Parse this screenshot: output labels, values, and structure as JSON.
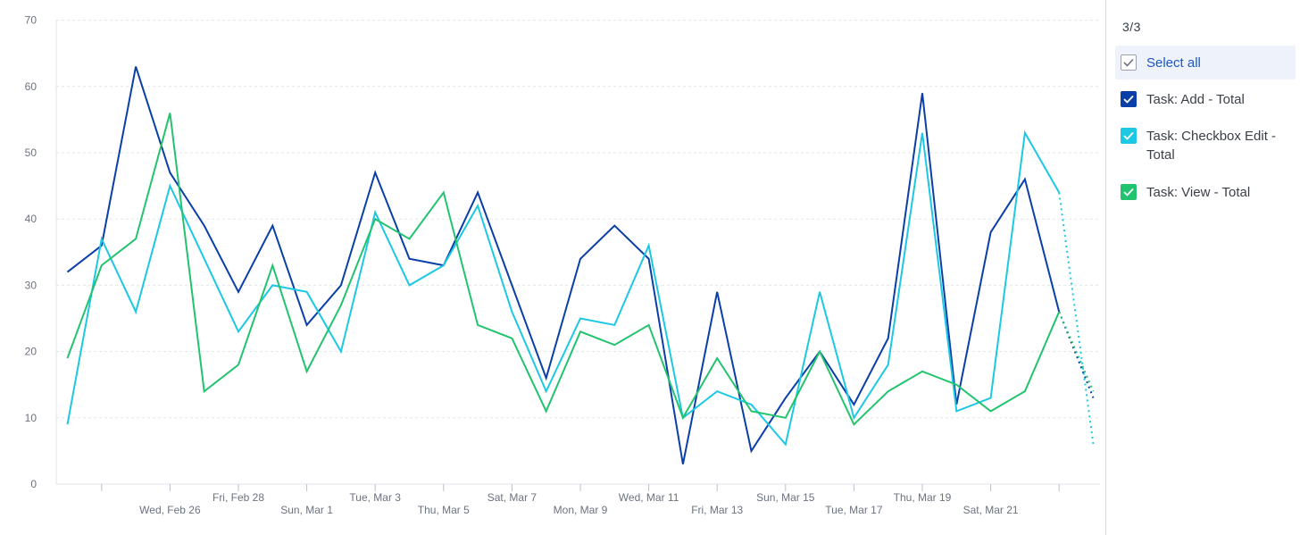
{
  "legend_panel": {
    "count": "3/3",
    "select_all": "Select all",
    "items": [
      {
        "label": "Task: Add - Total",
        "color": "#0b3fa8"
      },
      {
        "label": "Task: Checkbox Edit - Total",
        "color": "#1cc8e3"
      },
      {
        "label": "Task: View - Total",
        "color": "#22c36e"
      }
    ]
  },
  "chart_data": {
    "type": "line",
    "ylim": [
      0,
      70
    ],
    "yticks": [
      "0",
      "10",
      "20",
      "30",
      "40",
      "50",
      "60",
      "70"
    ],
    "xtick_labels": [
      "Wed, Feb 26",
      "Fri, Feb 28",
      "Sun, Mar 1",
      "Tue, Mar 3",
      "Thu, Mar 5",
      "Sat, Mar 7",
      "Mon, Mar 9",
      "Wed, Mar 11",
      "Fri, Mar 13",
      "Sun, Mar 15",
      "Tue, Mar 17",
      "Thu, Mar 19",
      "Sat, Mar 21"
    ],
    "x": [
      "Feb 23",
      "Feb 24",
      "Feb 25",
      "Feb 26",
      "Feb 27",
      "Feb 28",
      "Feb 29",
      "Mar 1",
      "Mar 2",
      "Mar 3",
      "Mar 4",
      "Mar 5",
      "Mar 6",
      "Mar 7",
      "Mar 8",
      "Mar 9",
      "Mar 10",
      "Mar 11",
      "Mar 12",
      "Mar 13",
      "Mar 14",
      "Mar 15",
      "Mar 16",
      "Mar 17",
      "Mar 18",
      "Mar 19",
      "Mar 20",
      "Mar 21",
      "Mar 22",
      "Mar 23",
      "Mar 24"
    ],
    "grid": true,
    "legend": "right",
    "series": [
      {
        "name": "Task: Add - Total",
        "color": "#0b3fa8",
        "values": [
          32,
          36,
          63,
          47,
          39,
          29,
          39,
          24,
          30,
          47,
          34,
          33,
          44,
          30,
          16,
          34,
          39,
          34,
          3,
          29,
          5,
          13,
          20,
          12,
          22,
          59,
          12,
          38,
          46,
          26,
          13
        ],
        "partial_from": 29
      },
      {
        "name": "Task: Checkbox Edit - Total",
        "color": "#1cc8e3",
        "values": [
          9,
          37,
          26,
          45,
          34,
          23,
          30,
          29,
          20,
          41,
          30,
          33,
          42,
          26,
          14,
          25,
          24,
          36,
          10,
          14,
          12,
          6,
          29,
          10,
          18,
          53,
          11,
          13,
          53,
          44,
          6
        ],
        "partial_from": 29
      },
      {
        "name": "Task: View - Total",
        "color": "#22c36e",
        "values": [
          19,
          33,
          37,
          56,
          14,
          18,
          33,
          17,
          27,
          40,
          37,
          44,
          24,
          22,
          11,
          23,
          21,
          24,
          10,
          19,
          11,
          10,
          20,
          9,
          14,
          17,
          15,
          11,
          14,
          26,
          14
        ],
        "partial_from": 29
      }
    ]
  }
}
